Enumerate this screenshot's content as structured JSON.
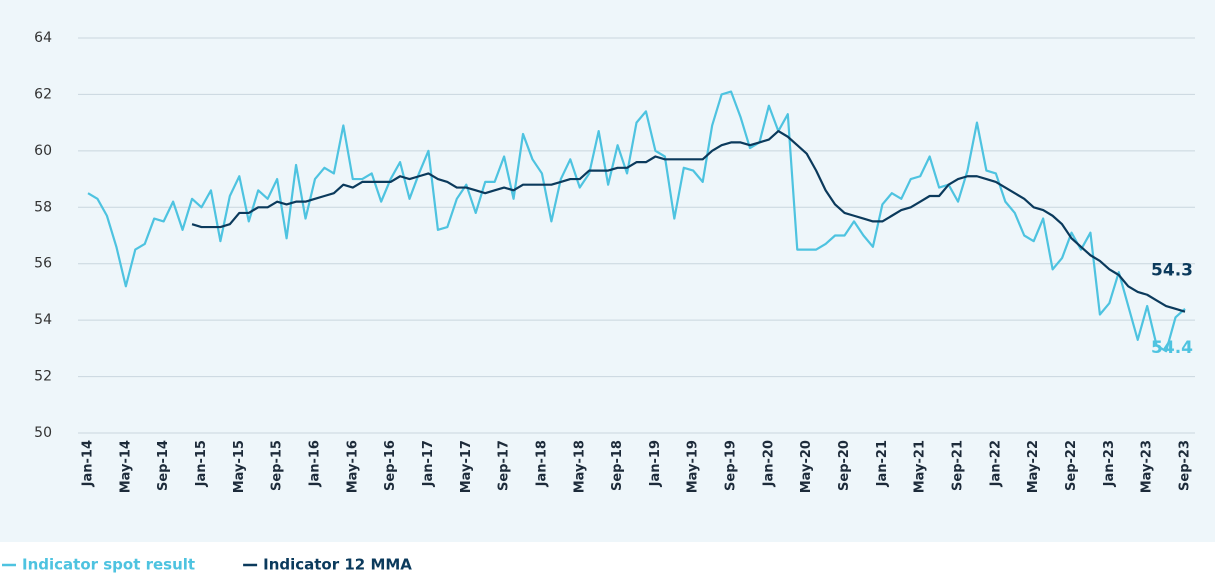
{
  "chart_data": {
    "type": "line",
    "categories": [
      "Jan-14",
      null,
      null,
      null,
      "May-14",
      null,
      null,
      null,
      "Sep-14",
      null,
      null,
      null,
      "Jan-15",
      null,
      null,
      null,
      "May-15",
      null,
      null,
      null,
      "Sep-15",
      null,
      null,
      null,
      "Jan-16",
      null,
      null,
      null,
      "May-16",
      null,
      null,
      null,
      "Sep-16",
      null,
      null,
      null,
      "Jan-17",
      null,
      null,
      null,
      "May-17",
      null,
      null,
      null,
      "Sep-17",
      null,
      null,
      null,
      "Jan-18",
      null,
      null,
      null,
      "May-18",
      null,
      null,
      null,
      "Sep-18",
      null,
      null,
      null,
      "Jan-19",
      null,
      null,
      null,
      "May-19",
      null,
      null,
      null,
      "Sep-19",
      null,
      null,
      null,
      "Jan-20",
      null,
      null,
      null,
      "May-20",
      null,
      null,
      null,
      "Sep-20",
      null,
      null,
      null,
      "Jan-21",
      null,
      null,
      null,
      "May-21",
      null,
      null,
      null,
      "Sep-21",
      null,
      null,
      null,
      "Jan-22",
      null,
      null,
      null,
      "May-22",
      null,
      null,
      null,
      "Sep-22",
      null,
      null,
      null,
      "Jan-23",
      null,
      null,
      null,
      "May-23",
      null,
      null,
      null,
      "Sep-23"
    ],
    "series": [
      {
        "name": "Indicator spot result",
        "color": "#4ec3e0",
        "values": [
          58.5,
          58.3,
          57.7,
          56.6,
          55.2,
          56.5,
          56.7,
          57.6,
          57.5,
          58.2,
          57.2,
          58.3,
          58.0,
          58.6,
          56.8,
          58.4,
          59.1,
          57.5,
          58.6,
          58.3,
          59.0,
          56.9,
          59.5,
          57.6,
          59.0,
          59.4,
          59.2,
          60.9,
          59.0,
          59.0,
          59.2,
          58.2,
          59.0,
          59.6,
          58.3,
          59.2,
          60.0,
          57.2,
          57.3,
          58.3,
          58.8,
          57.8,
          58.9,
          58.9,
          59.8,
          58.3,
          60.6,
          59.7,
          59.2,
          57.5,
          59.0,
          59.7,
          58.7,
          59.2,
          60.7,
          58.8,
          60.2,
          59.2,
          61.0,
          61.4,
          60.0,
          59.8,
          57.6,
          59.4,
          59.3,
          58.9,
          60.9,
          62.0,
          62.1,
          61.2,
          60.1,
          60.3,
          61.6,
          60.7,
          61.3,
          56.5,
          56.5,
          56.5,
          56.7,
          57.0,
          57.0,
          57.5,
          57.0,
          56.6,
          58.1,
          58.5,
          58.3,
          59.0,
          59.1,
          59.8,
          58.7,
          58.8,
          58.2,
          59.3,
          61.0,
          59.3,
          59.2,
          58.2,
          57.8,
          57.0,
          56.8,
          57.6,
          55.8,
          56.2,
          57.1,
          56.5,
          57.1,
          54.2,
          54.6,
          55.7,
          54.5,
          53.3,
          54.5,
          53.1,
          52.9,
          54.1,
          54.4
        ]
      },
      {
        "name": "Indicator 12 MMA",
        "color": "#0b3a5c",
        "values": [
          null,
          null,
          null,
          null,
          null,
          null,
          null,
          null,
          null,
          null,
          null,
          57.4,
          57.3,
          57.3,
          57.3,
          57.4,
          57.8,
          57.8,
          58.0,
          58.0,
          58.2,
          58.1,
          58.2,
          58.2,
          58.3,
          58.4,
          58.5,
          58.8,
          58.7,
          58.9,
          58.9,
          58.9,
          58.9,
          59.1,
          59.0,
          59.1,
          59.2,
          59.0,
          58.9,
          58.7,
          58.7,
          58.6,
          58.5,
          58.6,
          58.7,
          58.6,
          58.8,
          58.8,
          58.8,
          58.8,
          58.9,
          59.0,
          59.0,
          59.3,
          59.3,
          59.3,
          59.4,
          59.4,
          59.6,
          59.6,
          59.8,
          59.7,
          59.7,
          59.7,
          59.7,
          59.7,
          60.0,
          60.2,
          60.3,
          60.3,
          60.2,
          60.3,
          60.4,
          60.7,
          60.5,
          60.2,
          59.9,
          59.3,
          58.6,
          58.1,
          57.8,
          57.7,
          57.6,
          57.5,
          57.5,
          57.7,
          57.9,
          58.0,
          58.2,
          58.4,
          58.4,
          58.8,
          59.0,
          59.1,
          59.1,
          59.0,
          58.9,
          58.7,
          58.5,
          58.3,
          58.0,
          57.9,
          57.7,
          57.4,
          56.9,
          56.6,
          56.3,
          56.1,
          55.8,
          55.6,
          55.2,
          55.0,
          54.9,
          54.7,
          54.5,
          54.4,
          54.3
        ]
      }
    ],
    "ylim": [
      50,
      64
    ],
    "yticks": [
      50,
      52,
      54,
      56,
      58,
      60,
      62,
      64
    ],
    "grid": true,
    "legend": "bottom-left"
  }
}
